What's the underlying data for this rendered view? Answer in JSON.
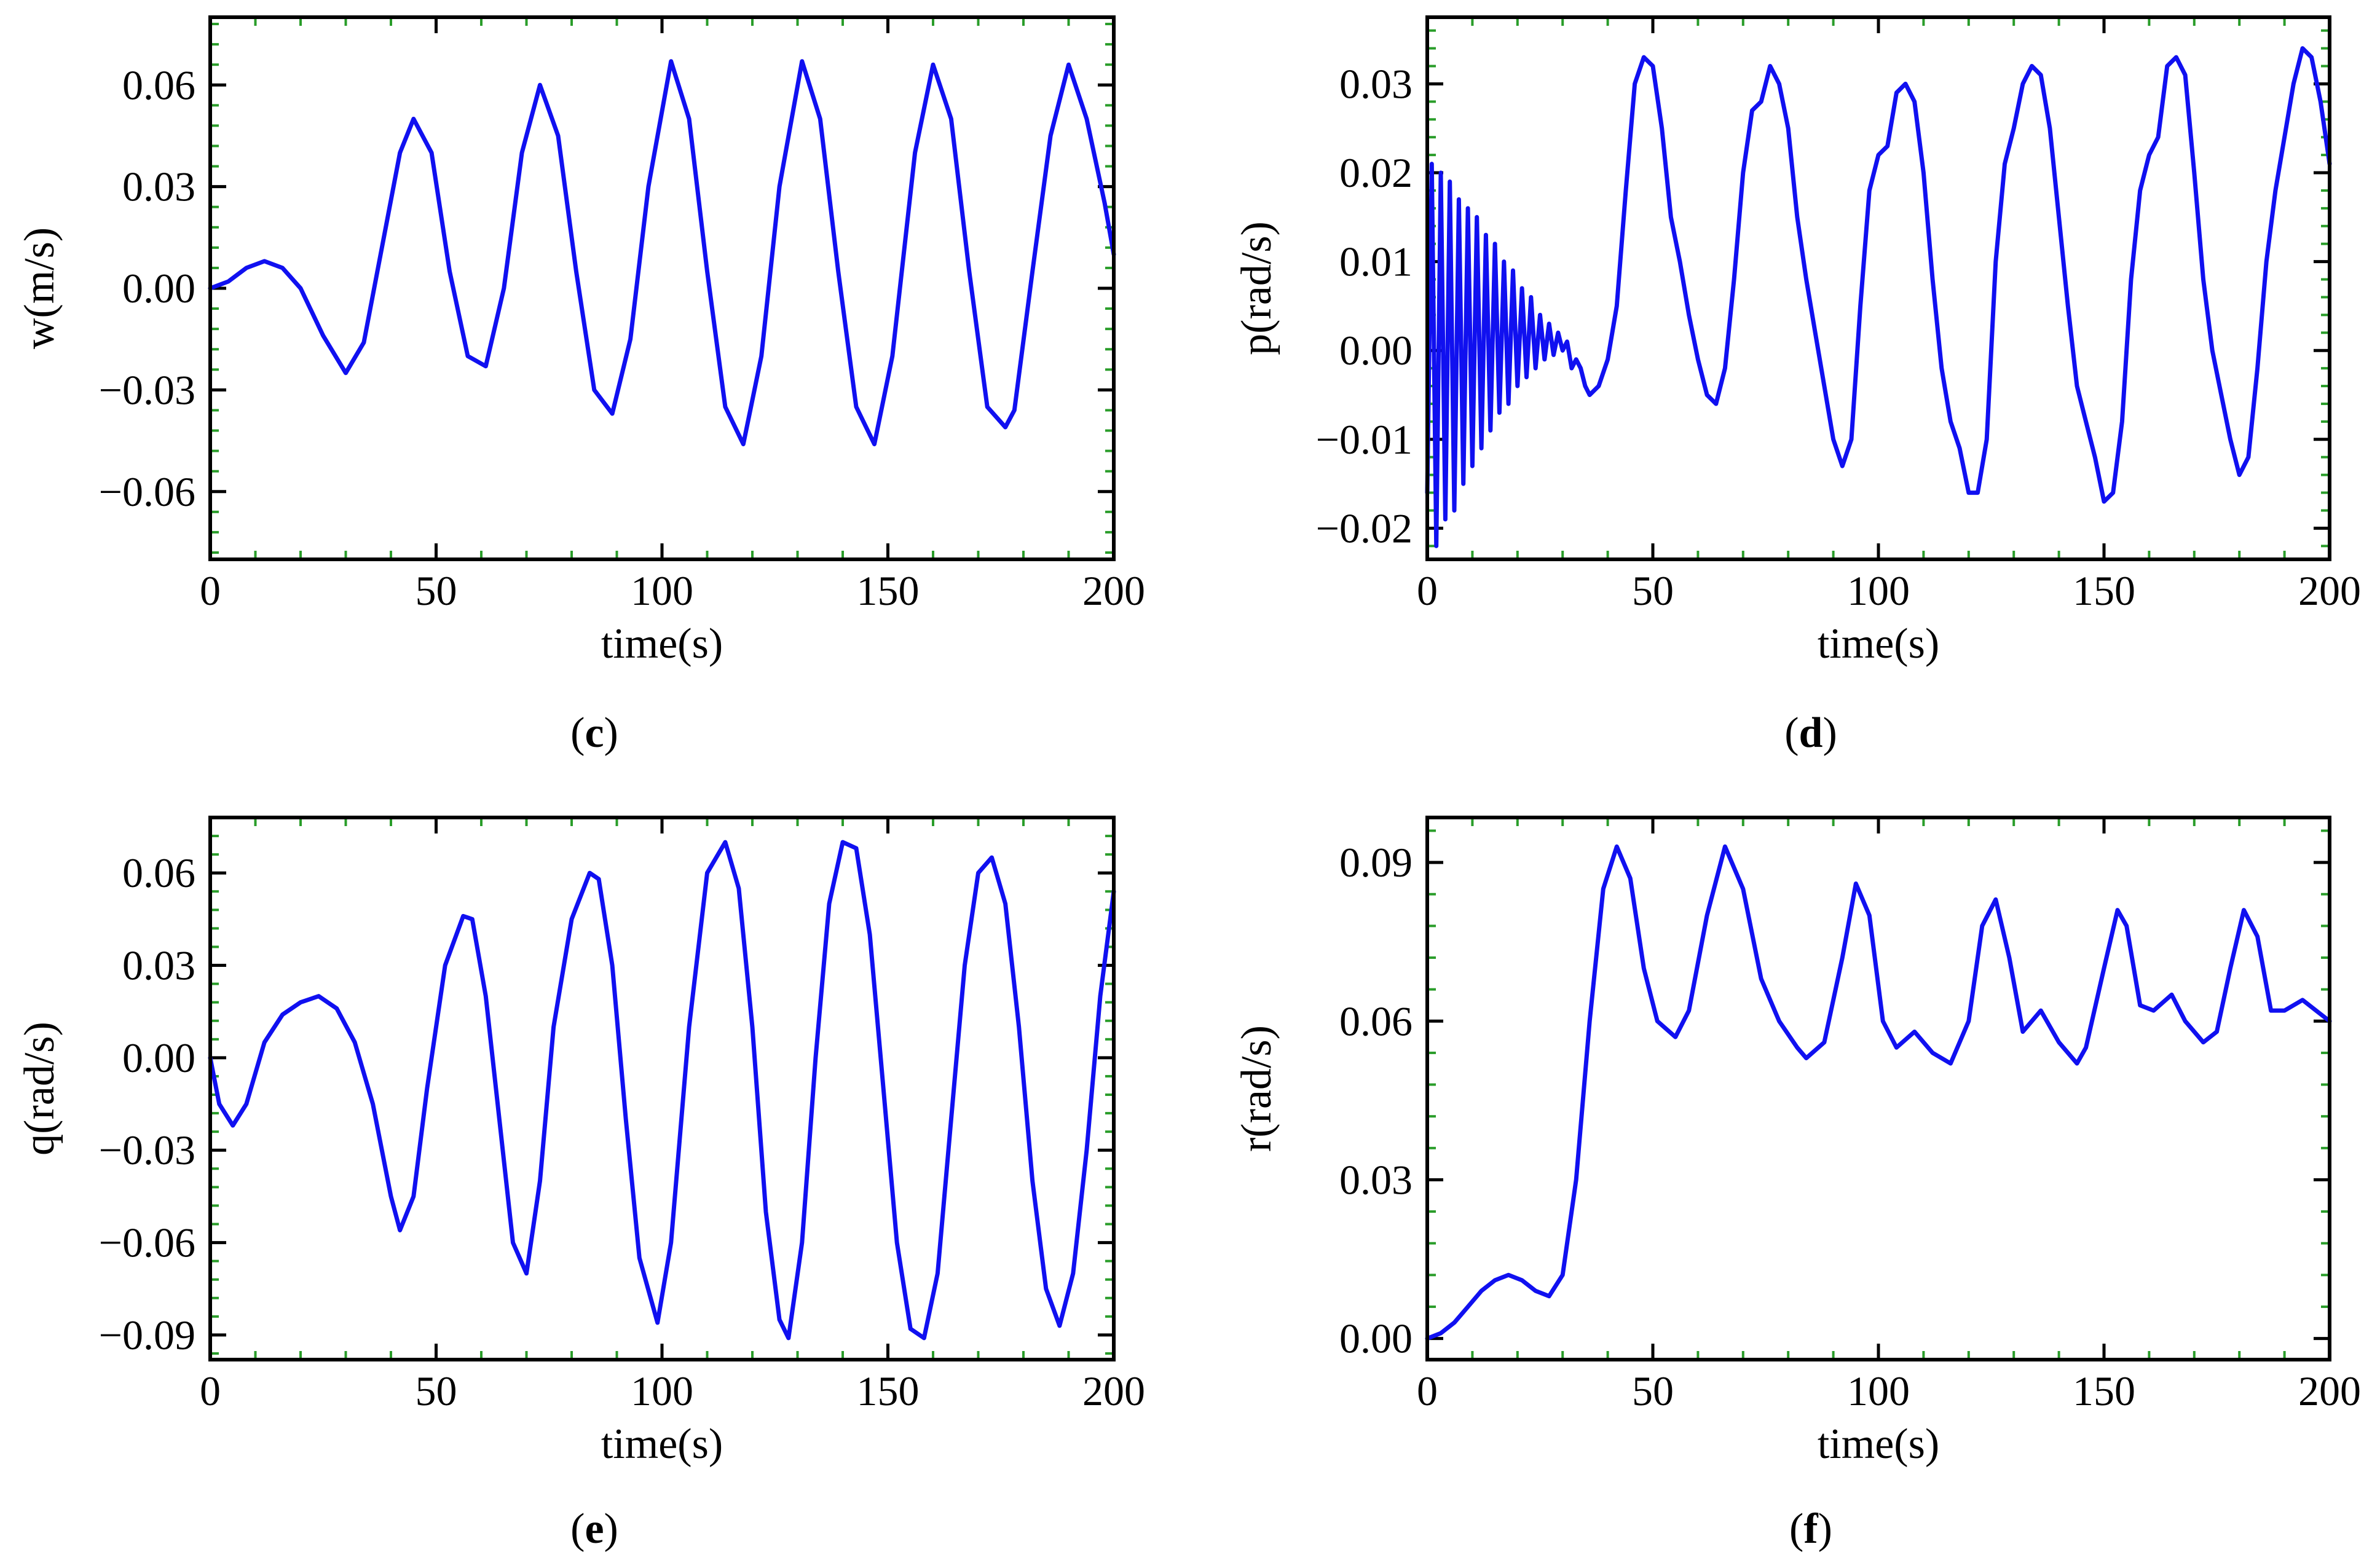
{
  "colors": {
    "series": "#1010f0",
    "minor_tick": "#2a9d2a",
    "axes": "#000000"
  },
  "chart_data": [
    {
      "type": "line",
      "caption_letter": "c",
      "xlabel": "time(s)",
      "ylabel": "w(m/s)",
      "xlim": [
        0,
        200
      ],
      "ylim": [
        -0.08,
        0.08
      ],
      "xticks": [
        0,
        50,
        100,
        150,
        200
      ],
      "xtick_labels": [
        "0",
        "50",
        "100",
        "150",
        "200"
      ],
      "yticks": [
        0.06,
        0.03,
        0.0,
        -0.03,
        -0.06
      ],
      "ytick_labels": [
        "0.06",
        "0.03",
        "0.00",
        "−0.03",
        "−0.06"
      ],
      "grid": false,
      "series": [
        {
          "x": [
            0,
            4,
            8,
            12,
            16,
            20,
            25,
            30,
            34,
            38,
            42,
            45,
            49,
            53,
            57,
            61,
            65,
            69,
            73,
            77,
            81,
            85,
            89,
            93,
            97,
            102,
            106,
            110,
            114,
            118,
            122,
            126,
            131,
            135,
            139,
            143,
            147,
            151,
            156,
            160,
            164,
            168,
            172,
            176,
            178,
            182,
            186,
            190,
            194,
            198,
            200
          ],
          "y": [
            0.0,
            0.002,
            0.006,
            0.008,
            0.006,
            0.0,
            -0.014,
            -0.025,
            -0.016,
            0.012,
            0.04,
            0.05,
            0.04,
            0.005,
            -0.02,
            -0.023,
            0.0,
            0.04,
            0.06,
            0.045,
            0.005,
            -0.03,
            -0.037,
            -0.015,
            0.03,
            0.067,
            0.05,
            0.005,
            -0.035,
            -0.046,
            -0.02,
            0.03,
            0.067,
            0.05,
            0.005,
            -0.035,
            -0.046,
            -0.02,
            0.04,
            0.066,
            0.05,
            0.005,
            -0.035,
            -0.041,
            -0.036,
            0.005,
            0.045,
            0.066,
            0.05,
            0.025,
            0.01
          ]
        }
      ]
    },
    {
      "type": "line",
      "caption_letter": "d",
      "xlabel": "time(s)",
      "ylabel": "p(rad/s)",
      "xlim": [
        0,
        200
      ],
      "ylim": [
        -0.0235,
        0.0375
      ],
      "xticks": [
        0,
        50,
        100,
        150,
        200
      ],
      "xtick_labels": [
        "0",
        "50",
        "100",
        "150",
        "200"
      ],
      "yticks": [
        0.03,
        0.02,
        0.01,
        0.0,
        -0.01,
        -0.02
      ],
      "ytick_labels": [
        "0.03",
        "0.02",
        "0.01",
        "0.00",
        "−0.01",
        "−0.02"
      ],
      "grid": false,
      "series": [
        {
          "x": [
            0,
            1,
            2,
            3,
            4,
            5,
            6,
            7,
            8,
            9,
            10,
            11,
            12,
            13,
            14,
            15,
            16,
            17,
            18,
            19,
            20,
            21,
            22,
            23,
            24,
            25,
            26,
            27,
            28,
            29,
            30,
            31,
            32,
            33,
            34,
            35,
            36,
            38,
            40,
            42,
            44,
            46,
            48,
            50,
            52,
            54,
            56,
            58,
            60,
            62,
            64,
            66,
            68,
            70,
            72,
            74,
            76,
            78,
            80,
            82,
            84,
            86,
            88,
            90,
            92,
            94,
            96,
            98,
            100,
            102,
            104,
            106,
            108,
            110,
            112,
            114,
            116,
            118,
            120,
            122,
            124,
            126,
            128,
            130,
            132,
            134,
            136,
            138,
            140,
            142,
            144,
            146,
            148,
            150,
            152,
            154,
            156,
            158,
            160,
            162,
            164,
            166,
            168,
            170,
            172,
            174,
            176,
            178,
            180,
            182,
            184,
            186,
            188,
            190,
            192,
            194,
            196,
            198,
            200
          ],
          "y": [
            -0.016,
            0.021,
            -0.022,
            0.02,
            -0.019,
            0.019,
            -0.018,
            0.017,
            -0.015,
            0.016,
            -0.013,
            0.015,
            -0.011,
            0.013,
            -0.009,
            0.012,
            -0.007,
            0.01,
            -0.006,
            0.009,
            -0.004,
            0.007,
            -0.003,
            0.006,
            -0.002,
            0.004,
            -0.001,
            0.003,
            -0.0005,
            0.002,
            0.0,
            0.001,
            -0.002,
            -0.001,
            -0.002,
            -0.004,
            -0.005,
            -0.004,
            -0.001,
            0.005,
            0.018,
            0.03,
            0.033,
            0.032,
            0.025,
            0.015,
            0.01,
            0.004,
            -0.001,
            -0.005,
            -0.006,
            -0.002,
            0.008,
            0.02,
            0.027,
            0.028,
            0.032,
            0.03,
            0.025,
            0.015,
            0.008,
            0.002,
            -0.004,
            -0.01,
            -0.013,
            -0.01,
            0.005,
            0.018,
            0.022,
            0.023,
            0.029,
            0.03,
            0.028,
            0.02,
            0.008,
            -0.002,
            -0.008,
            -0.011,
            -0.016,
            -0.016,
            -0.01,
            0.01,
            0.021,
            0.025,
            0.03,
            0.032,
            0.031,
            0.025,
            0.015,
            0.005,
            -0.004,
            -0.008,
            -0.012,
            -0.017,
            -0.016,
            -0.008,
            0.008,
            0.018,
            0.022,
            0.024,
            0.032,
            0.033,
            0.031,
            0.02,
            0.008,
            0.0,
            -0.005,
            -0.01,
            -0.014,
            -0.012,
            -0.002,
            0.01,
            0.018,
            0.024,
            0.03,
            0.034,
            0.033,
            0.028,
            0.021
          ]
        }
      ]
    },
    {
      "type": "line",
      "caption_letter": "e",
      "xlabel": "time(s)",
      "ylabel": "q(rad/s)",
      "xlim": [
        0,
        200
      ],
      "ylim": [
        -0.098,
        0.078
      ],
      "xticks": [
        0,
        50,
        100,
        150,
        200
      ],
      "xtick_labels": [
        "0",
        "50",
        "100",
        "150",
        "200"
      ],
      "yticks": [
        0.06,
        0.03,
        0.0,
        -0.03,
        -0.06,
        -0.09
      ],
      "ytick_labels": [
        "0.06",
        "0.03",
        "0.00",
        "−0.03",
        "−0.06",
        "−0.09"
      ],
      "grid": false,
      "series": [
        {
          "x": [
            0,
            2,
            5,
            8,
            12,
            16,
            20,
            24,
            28,
            32,
            36,
            40,
            42,
            45,
            48,
            52,
            56,
            58,
            61,
            64,
            67,
            70,
            73,
            76,
            80,
            84,
            86,
            89,
            92,
            95,
            99,
            102,
            106,
            110,
            114,
            117,
            120,
            123,
            126,
            128,
            131,
            134,
            137,
            140,
            143,
            146,
            149,
            152,
            155,
            158,
            161,
            164,
            167,
            170,
            173,
            176,
            179,
            182,
            185,
            188,
            191,
            194,
            197,
            200
          ],
          "y": [
            0.0,
            -0.015,
            -0.022,
            -0.015,
            0.005,
            0.014,
            0.018,
            0.02,
            0.016,
            0.005,
            -0.015,
            -0.045,
            -0.056,
            -0.045,
            -0.01,
            0.03,
            0.046,
            0.045,
            0.02,
            -0.02,
            -0.06,
            -0.07,
            -0.04,
            0.01,
            0.045,
            0.06,
            0.058,
            0.03,
            -0.02,
            -0.065,
            -0.086,
            -0.06,
            0.01,
            0.06,
            0.07,
            0.055,
            0.01,
            -0.05,
            -0.085,
            -0.091,
            -0.06,
            0.0,
            0.05,
            0.07,
            0.068,
            0.04,
            -0.01,
            -0.06,
            -0.088,
            -0.091,
            -0.07,
            -0.02,
            0.03,
            0.06,
            0.065,
            0.05,
            0.01,
            -0.04,
            -0.075,
            -0.087,
            -0.07,
            -0.03,
            0.02,
            0.054
          ]
        }
      ]
    },
    {
      "type": "line",
      "caption_letter": "f",
      "xlabel": "time(s)",
      "ylabel": "r(rad/s)",
      "xlim": [
        0,
        200
      ],
      "ylim": [
        -0.004,
        0.0985
      ],
      "xticks": [
        0,
        50,
        100,
        150,
        200
      ],
      "xtick_labels": [
        "0",
        "50",
        "100",
        "150",
        "200"
      ],
      "yticks": [
        0.09,
        0.06,
        0.03,
        0.0
      ],
      "ytick_labels": [
        "0.09",
        "0.06",
        "0.03",
        "0.00"
      ],
      "grid": false,
      "series": [
        {
          "x": [
            0,
            3,
            6,
            9,
            12,
            15,
            18,
            21,
            24,
            27,
            30,
            33,
            36,
            39,
            42,
            45,
            48,
            51,
            55,
            58,
            62,
            66,
            70,
            74,
            78,
            82,
            84,
            88,
            92,
            95,
            98,
            101,
            104,
            108,
            112,
            116,
            120,
            123,
            126,
            129,
            132,
            136,
            140,
            144,
            146,
            150,
            153,
            155,
            158,
            161,
            165,
            168,
            172,
            175,
            178,
            181,
            184,
            187,
            190,
            194,
            197,
            200
          ],
          "y": [
            0.0,
            0.001,
            0.003,
            0.006,
            0.009,
            0.011,
            0.012,
            0.011,
            0.009,
            0.008,
            0.012,
            0.03,
            0.06,
            0.085,
            0.093,
            0.087,
            0.07,
            0.06,
            0.057,
            0.062,
            0.08,
            0.093,
            0.085,
            0.068,
            0.06,
            0.055,
            0.053,
            0.056,
            0.072,
            0.086,
            0.08,
            0.06,
            0.055,
            0.058,
            0.054,
            0.052,
            0.06,
            0.078,
            0.083,
            0.072,
            0.058,
            0.062,
            0.056,
            0.052,
            0.055,
            0.07,
            0.081,
            0.078,
            0.063,
            0.062,
            0.065,
            0.06,
            0.056,
            0.058,
            0.07,
            0.081,
            0.076,
            0.062,
            0.062,
            0.064,
            0.062,
            0.06
          ]
        }
      ]
    }
  ]
}
